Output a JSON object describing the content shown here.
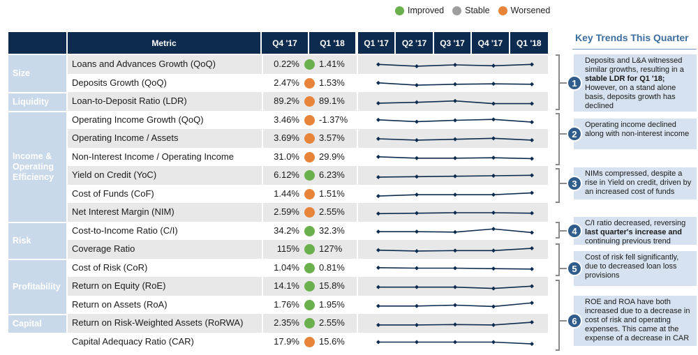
{
  "legend": [
    {
      "label": "Improved",
      "color": "#6ab04c"
    },
    {
      "label": "Stable",
      "color": "#9e9e9e"
    },
    {
      "label": "Worsened",
      "color": "#e8833a"
    }
  ],
  "header": {
    "metric": "Metric",
    "q4": "Q4 '17",
    "q1": "Q1 '18"
  },
  "chart_data": {
    "type": "table",
    "title": "Key Trends This Quarter",
    "spark_quarters": [
      "Q1 '17",
      "Q2 '17",
      "Q3 '17",
      "Q4 '17",
      "Q1 '18"
    ],
    "categories": [
      {
        "label": "Size",
        "rows": 2
      },
      {
        "label": "Liquidity",
        "rows": 1
      },
      {
        "label": "Income & Operating Efficiency",
        "rows": 6
      },
      {
        "label": "Risk",
        "rows": 2
      },
      {
        "label": "Profitability",
        "rows": 3
      },
      {
        "label": "Capital",
        "rows": 1
      }
    ],
    "rows": [
      {
        "metric": "Loans and Advances Growth (QoQ)",
        "q4": "0.22%",
        "q1": "1.41%",
        "status": "improved",
        "spark": [
          5,
          3,
          4.5,
          3.5,
          5
        ]
      },
      {
        "metric": "Deposits Growth (QoQ)",
        "q4": "2.47%",
        "q1": "1.53%",
        "status": "worsened",
        "spark": [
          5,
          2.5,
          3.5,
          4,
          3.5
        ]
      },
      {
        "metric": "Loan-to-Deposit Ratio (LDR)",
        "q4": "89.2%",
        "q1": "89.1%",
        "status": "worsened",
        "spark": [
          3,
          4,
          5.5,
          2.5,
          2.5
        ]
      },
      {
        "metric": "Operating Income Growth (QoQ)",
        "q4": "3.46%",
        "q1": "-1.37%",
        "status": "worsened",
        "spark": [
          5,
          3,
          4.5,
          5.5,
          2.5
        ]
      },
      {
        "metric": "Operating Income / Assets",
        "q4": "3.69%",
        "q1": "3.57%",
        "status": "worsened",
        "spark": [
          4.5,
          3,
          4,
          5,
          3
        ]
      },
      {
        "metric": "Non-Interest Income / Operating Income",
        "q4": "31.0%",
        "q1": "29.9%",
        "status": "worsened",
        "spark": [
          5,
          3.5,
          3.5,
          4,
          3
        ]
      },
      {
        "metric": "Yield on Credit (YoC)",
        "q4": "6.12%",
        "q1": "6.23%",
        "status": "improved",
        "spark": [
          3,
          3.5,
          4,
          4.5,
          5
        ]
      },
      {
        "metric": "Cost of Funds (CoF)",
        "q4": "1.44%",
        "q1": "1.51%",
        "status": "worsened",
        "spark": [
          2.5,
          4,
          4,
          4,
          6
        ]
      },
      {
        "metric": "Net Interest Margin (NIM)",
        "q4": "2.59%",
        "q1": "2.55%",
        "status": "worsened",
        "spark": [
          3.5,
          4,
          4.5,
          4.5,
          4
        ]
      },
      {
        "metric": "Cost-to-Income Ratio (C/I)",
        "q4": "34.2%",
        "q1": "32.3%",
        "status": "improved",
        "spark": [
          4,
          4,
          3.5,
          7,
          3
        ]
      },
      {
        "metric": "Coverage Ratio",
        "q4": "115%",
        "q1": "127%",
        "status": "improved",
        "spark": [
          4,
          3,
          3.5,
          3.5,
          6
        ]
      },
      {
        "metric": "Cost of Risk (CoR)",
        "q4": "1.04%",
        "q1": "0.81%",
        "status": "improved",
        "spark": [
          5,
          4.5,
          4.5,
          4,
          3.5
        ]
      },
      {
        "metric": "Return on Equity (RoE)",
        "q4": "14.1%",
        "q1": "15.8%",
        "status": "improved",
        "spark": [
          4,
          4,
          4,
          2.5,
          5
        ]
      },
      {
        "metric": "Return on Assets (RoA)",
        "q4": "1.76%",
        "q1": "1.95%",
        "status": "improved",
        "spark": [
          3.5,
          3.5,
          4.5,
          3,
          7
        ]
      },
      {
        "metric": "Return on Risk-Weighted Assets (RoRWA)",
        "q4": "2.35%",
        "q1": "2.55%",
        "status": "improved",
        "spark": [
          3,
          3,
          3.5,
          3,
          6
        ]
      },
      {
        "metric": "Capital Adequacy Ratio (CAR)",
        "q4": "17.9%",
        "q1": "15.6%",
        "status": "worsened",
        "spark": [
          4.5,
          4.5,
          4.5,
          4.5,
          2.5
        ]
      }
    ]
  },
  "key_trends": [
    {
      "num": "1",
      "pre": "Deposits and L&A witnessed similar growths, resulting in a ",
      "bold": "stable LDR for Q1 '18;",
      "post": " However, on a stand alone basis, deposits growth has declined"
    },
    {
      "num": "2",
      "pre": "Operating income declined along with non-interest income",
      "bold": "",
      "post": ""
    },
    {
      "num": "3",
      "pre": "NIMs compressed, despite a rise in Yield on credit, driven by an increased cost of funds",
      "bold": "",
      "post": ""
    },
    {
      "num": "4",
      "pre": "C/I ratio decreased, reversing ",
      "bold": "last quarter's increase and",
      "post": " continuing previous trend"
    },
    {
      "num": "5",
      "pre": "Cost of risk fell significantly, due to decreased loan loss provisions",
      "bold": "",
      "post": ""
    },
    {
      "num": "6",
      "pre": "ROE and ROA have both increased due to a decrease in cost of risk and operating expenses. This came at the expense of a decrease in CAR",
      "bold": "",
      "post": ""
    }
  ]
}
